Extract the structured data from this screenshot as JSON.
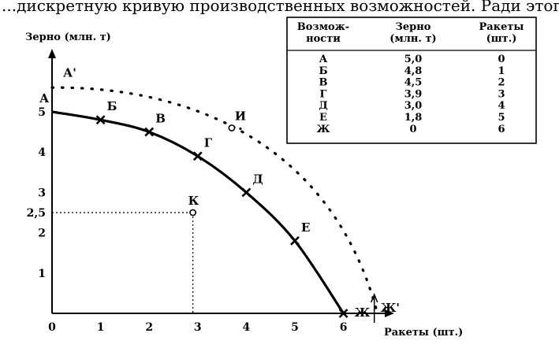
{
  "header_text": "...дискретную кривую производственных возможностей. Ради этого сохраняется",
  "chart_data": {
    "type": "line",
    "ylabel": "Зерно (млн. т)",
    "xlabel": "Ракеты (шт.)",
    "xlim": [
      0,
      6.8
    ],
    "ylim": [
      0,
      6
    ],
    "x_ticks": [
      "0",
      "1",
      "2",
      "3",
      "4",
      "5",
      "6"
    ],
    "y_ticks": [
      "1",
      "2",
      "2,5",
      "3",
      "4",
      "5"
    ],
    "series": [
      {
        "style": "solid",
        "labels": [
          "А",
          "Б",
          "В",
          "Г",
          "Д",
          "Е",
          "Ж"
        ],
        "x": [
          0,
          1,
          2,
          3,
          4,
          5,
          6
        ],
        "y": [
          5.0,
          4.8,
          4.5,
          3.9,
          3.0,
          1.8,
          0
        ]
      },
      {
        "style": "dotted",
        "start_label": "А'",
        "end_label": "Ж'",
        "y_at_x0": 5.6,
        "x_at_y0": 6.7
      }
    ],
    "points": [
      {
        "label": "И",
        "x": 3.7,
        "y": 4.6
      },
      {
        "label": "К",
        "x": 2.9,
        "y": 2.5
      }
    ],
    "table": {
      "headers": [
        "Возмож-\nности",
        "Зерно\n(млн. т)",
        "Ракеты\n(шт.)"
      ],
      "rows": [
        [
          "А",
          "5,0",
          "0"
        ],
        [
          "Б",
          "4,8",
          "1"
        ],
        [
          "В",
          "4,5",
          "2"
        ],
        [
          "Г",
          "3,9",
          "3"
        ],
        [
          "Д",
          "3,0",
          "4"
        ],
        [
          "Е",
          "1,8",
          "5"
        ],
        [
          "Ж",
          "0",
          "6"
        ]
      ]
    }
  }
}
